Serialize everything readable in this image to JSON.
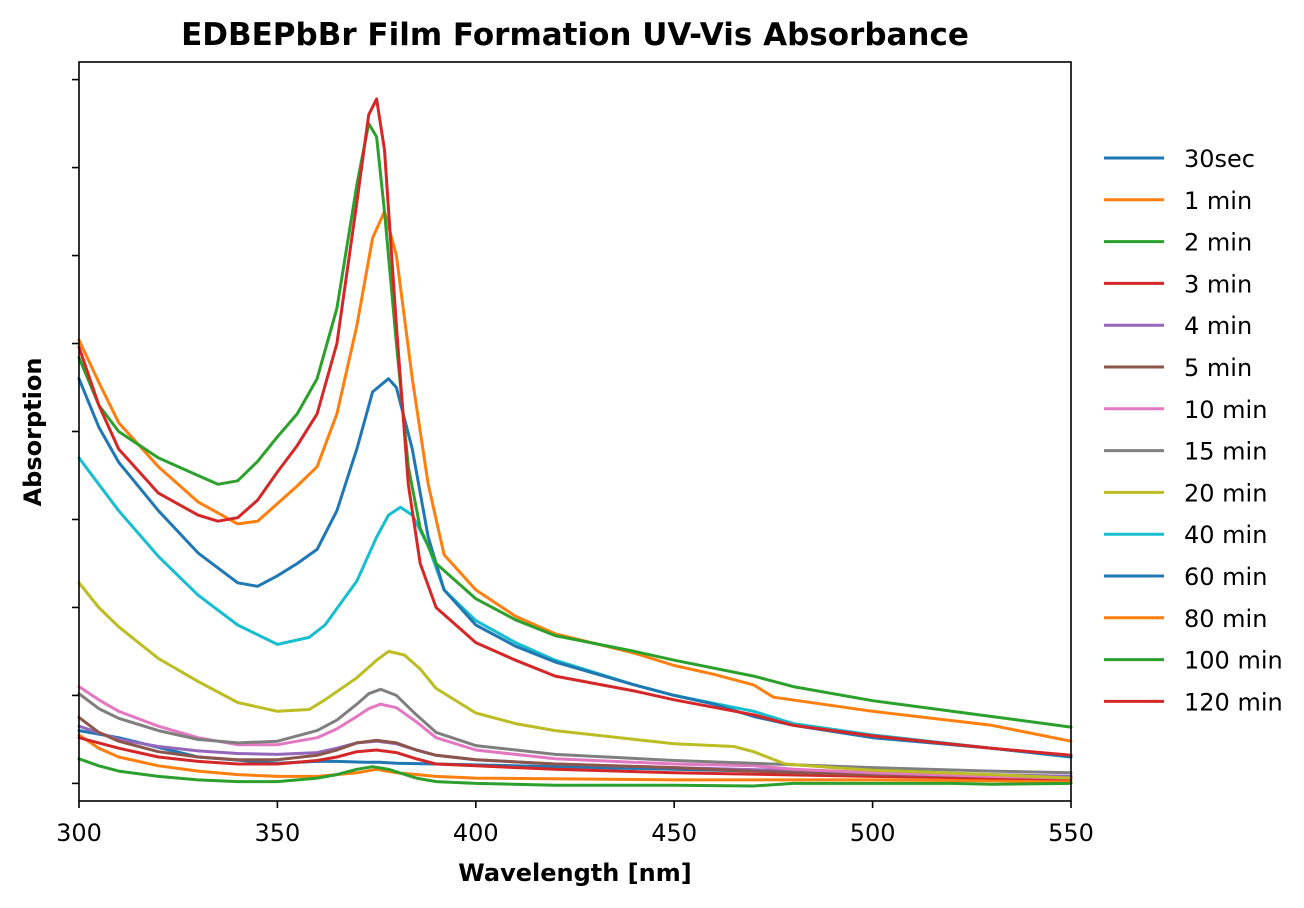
{
  "chart_data": {
    "type": "line",
    "title": "EDBEPbBr Film Formation UV-Vis Absorbance",
    "xlabel": "Wavelength [nm]",
    "ylabel": "Absorption",
    "xlim": [
      300,
      550
    ],
    "ylim": [
      -0.02,
      0.82
    ],
    "xticks": [
      300,
      350,
      400,
      450,
      500,
      550
    ],
    "yticks": [
      0.0,
      0.1,
      0.2,
      0.3,
      0.4,
      0.5,
      0.6,
      0.7,
      0.8
    ],
    "y_tick_labels_shown": false,
    "grid": false,
    "legend_position": "right, outside plot",
    "series": [
      {
        "name": "30sec",
        "color": "#1f77b4",
        "x": [
          300,
          310,
          330,
          350,
          360,
          365,
          372,
          376,
          380,
          390,
          400,
          450,
          500,
          530,
          550
        ],
        "y": [
          0.06,
          0.052,
          0.03,
          0.023,
          0.025,
          0.025,
          0.024,
          0.024,
          0.023,
          0.022,
          0.021,
          0.016,
          0.011,
          0.009,
          0.008
        ]
      },
      {
        "name": "1 min",
        "color": "#ff7f0e",
        "x": [
          300,
          305,
          310,
          320,
          330,
          340,
          350,
          360,
          370,
          375,
          380,
          390,
          400,
          450,
          500,
          530,
          550
        ],
        "y": [
          0.055,
          0.04,
          0.03,
          0.02,
          0.014,
          0.01,
          0.008,
          0.008,
          0.012,
          0.016,
          0.012,
          0.008,
          0.006,
          0.004,
          0.004,
          0.003,
          0.002
        ]
      },
      {
        "name": "2 min",
        "color": "#2ca02c",
        "x": [
          300,
          305,
          310,
          320,
          330,
          340,
          350,
          360,
          365,
          370,
          374,
          378,
          385,
          390,
          400,
          420,
          450,
          470,
          480,
          500,
          520,
          530,
          550
        ],
        "y": [
          0.028,
          0.02,
          0.014,
          0.008,
          0.004,
          0.002,
          0.002,
          0.006,
          0.01,
          0.016,
          0.019,
          0.016,
          0.006,
          0.002,
          0.0,
          -0.002,
          -0.002,
          -0.003,
          0.0,
          0.0,
          0.0,
          -0.001,
          0.0
        ]
      },
      {
        "name": "3 min",
        "color": "#d62728",
        "x": [
          300,
          310,
          320,
          330,
          340,
          350,
          360,
          365,
          370,
          375,
          380,
          385,
          390,
          400,
          420,
          450,
          500,
          530,
          550
        ],
        "y": [
          0.052,
          0.04,
          0.03,
          0.025,
          0.022,
          0.022,
          0.026,
          0.03,
          0.036,
          0.038,
          0.035,
          0.028,
          0.022,
          0.02,
          0.016,
          0.012,
          0.008,
          0.006,
          0.005
        ]
      },
      {
        "name": "4 min",
        "color": "#9467bd",
        "x": [
          300,
          310,
          320,
          330,
          340,
          350,
          360,
          365,
          370,
          375,
          380,
          385,
          390,
          400,
          420,
          450,
          500,
          530,
          550
        ],
        "y": [
          0.065,
          0.05,
          0.042,
          0.037,
          0.034,
          0.033,
          0.035,
          0.04,
          0.046,
          0.048,
          0.045,
          0.038,
          0.032,
          0.027,
          0.022,
          0.018,
          0.012,
          0.01,
          0.008
        ]
      },
      {
        "name": "5 min",
        "color": "#8c564b",
        "x": [
          300,
          305,
          310,
          320,
          330,
          340,
          350,
          360,
          365,
          370,
          375,
          380,
          385,
          390,
          400,
          420,
          450,
          480,
          500,
          530,
          550
        ],
        "y": [
          0.075,
          0.058,
          0.048,
          0.036,
          0.03,
          0.027,
          0.027,
          0.032,
          0.038,
          0.046,
          0.049,
          0.046,
          0.038,
          0.032,
          0.027,
          0.022,
          0.018,
          0.012,
          0.01,
          0.008,
          0.006
        ]
      },
      {
        "name": "10 min",
        "color": "#e377c2",
        "x": [
          300,
          305,
          310,
          320,
          330,
          340,
          350,
          360,
          365,
          370,
          373,
          376,
          380,
          385,
          390,
          400,
          420,
          450,
          470,
          480,
          500,
          530,
          550
        ],
        "y": [
          0.11,
          0.095,
          0.082,
          0.065,
          0.052,
          0.044,
          0.044,
          0.052,
          0.062,
          0.076,
          0.085,
          0.09,
          0.086,
          0.07,
          0.052,
          0.038,
          0.028,
          0.022,
          0.02,
          0.016,
          0.012,
          0.008,
          0.006
        ]
      },
      {
        "name": "15 min",
        "color": "#7f7f7f",
        "x": [
          300,
          305,
          310,
          320,
          330,
          340,
          350,
          360,
          365,
          370,
          373,
          376,
          380,
          385,
          390,
          400,
          420,
          450,
          500,
          530,
          550
        ],
        "y": [
          0.102,
          0.085,
          0.074,
          0.06,
          0.05,
          0.046,
          0.048,
          0.06,
          0.072,
          0.09,
          0.102,
          0.107,
          0.1,
          0.078,
          0.058,
          0.043,
          0.033,
          0.026,
          0.018,
          0.014,
          0.012
        ]
      },
      {
        "name": "20 min",
        "color": "#bcbd22",
        "x": [
          300,
          305,
          310,
          320,
          330,
          340,
          350,
          358,
          362,
          370,
          375,
          378,
          382,
          386,
          390,
          400,
          410,
          420,
          440,
          450,
          465,
          470,
          478,
          490,
          500,
          530,
          550
        ],
        "y": [
          0.228,
          0.2,
          0.178,
          0.142,
          0.116,
          0.092,
          0.082,
          0.084,
          0.095,
          0.12,
          0.14,
          0.15,
          0.146,
          0.13,
          0.108,
          0.08,
          0.068,
          0.06,
          0.05,
          0.045,
          0.042,
          0.036,
          0.022,
          0.018,
          0.015,
          0.01,
          0.006
        ]
      },
      {
        "name": "40 min",
        "color": "#17becf",
        "x": [
          300,
          305,
          310,
          320,
          330,
          340,
          350,
          358,
          362,
          370,
          375,
          378,
          381,
          384,
          388,
          392,
          400,
          410,
          420,
          440,
          450,
          470,
          480,
          500,
          530,
          550
        ],
        "y": [
          0.37,
          0.34,
          0.31,
          0.258,
          0.214,
          0.18,
          0.158,
          0.166,
          0.18,
          0.23,
          0.28,
          0.305,
          0.314,
          0.305,
          0.27,
          0.22,
          0.185,
          0.16,
          0.14,
          0.112,
          0.1,
          0.082,
          0.068,
          0.055,
          0.04,
          0.03
        ]
      },
      {
        "name": "60 min",
        "color": "#1f77b4",
        "x": [
          300,
          305,
          310,
          320,
          330,
          340,
          345,
          350,
          355,
          360,
          365,
          370,
          374,
          378,
          380,
          384,
          388,
          392,
          400,
          410,
          420,
          440,
          450,
          460,
          470,
          480,
          500,
          530,
          550
        ],
        "y": [
          0.46,
          0.405,
          0.365,
          0.31,
          0.262,
          0.228,
          0.224,
          0.236,
          0.25,
          0.266,
          0.31,
          0.38,
          0.445,
          0.46,
          0.45,
          0.38,
          0.28,
          0.22,
          0.18,
          0.156,
          0.138,
          0.112,
          0.1,
          0.09,
          0.076,
          0.066,
          0.052,
          0.04,
          0.03
        ]
      },
      {
        "name": "80 min",
        "color": "#ff7f0e",
        "x": [
          300,
          305,
          310,
          320,
          330,
          340,
          345,
          350,
          355,
          360,
          365,
          370,
          374,
          377,
          380,
          384,
          388,
          392,
          400,
          410,
          420,
          440,
          450,
          460,
          470,
          475,
          500,
          530,
          550
        ],
        "y": [
          0.504,
          0.456,
          0.41,
          0.36,
          0.32,
          0.295,
          0.298,
          0.318,
          0.338,
          0.36,
          0.42,
          0.52,
          0.62,
          0.65,
          0.6,
          0.46,
          0.34,
          0.26,
          0.22,
          0.19,
          0.17,
          0.148,
          0.134,
          0.124,
          0.112,
          0.098,
          0.082,
          0.066,
          0.048
        ]
      },
      {
        "name": "100 min",
        "color": "#2ca02c",
        "x": [
          300,
          305,
          310,
          320,
          330,
          335,
          340,
          345,
          350,
          355,
          360,
          365,
          370,
          373,
          375,
          377,
          380,
          383,
          386,
          390,
          400,
          410,
          420,
          440,
          450,
          470,
          480,
          500,
          530,
          550
        ],
        "y": [
          0.484,
          0.43,
          0.4,
          0.37,
          0.35,
          0.34,
          0.344,
          0.366,
          0.394,
          0.42,
          0.46,
          0.54,
          0.68,
          0.75,
          0.735,
          0.65,
          0.5,
          0.36,
          0.29,
          0.25,
          0.21,
          0.186,
          0.168,
          0.15,
          0.14,
          0.122,
          0.11,
          0.094,
          0.076,
          0.064
        ]
      },
      {
        "name": "120 min",
        "color": "#d62728",
        "x": [
          300,
          305,
          310,
          320,
          330,
          335,
          340,
          345,
          350,
          355,
          360,
          365,
          370,
          373,
          375,
          377,
          380,
          383,
          386,
          390,
          400,
          410,
          420,
          440,
          450,
          470,
          480,
          500,
          530,
          550
        ],
        "y": [
          0.496,
          0.43,
          0.38,
          0.33,
          0.305,
          0.298,
          0.302,
          0.322,
          0.354,
          0.384,
          0.42,
          0.5,
          0.66,
          0.76,
          0.778,
          0.72,
          0.52,
          0.34,
          0.25,
          0.2,
          0.16,
          0.14,
          0.122,
          0.105,
          0.095,
          0.078,
          0.066,
          0.054,
          0.04,
          0.032
        ]
      }
    ]
  }
}
